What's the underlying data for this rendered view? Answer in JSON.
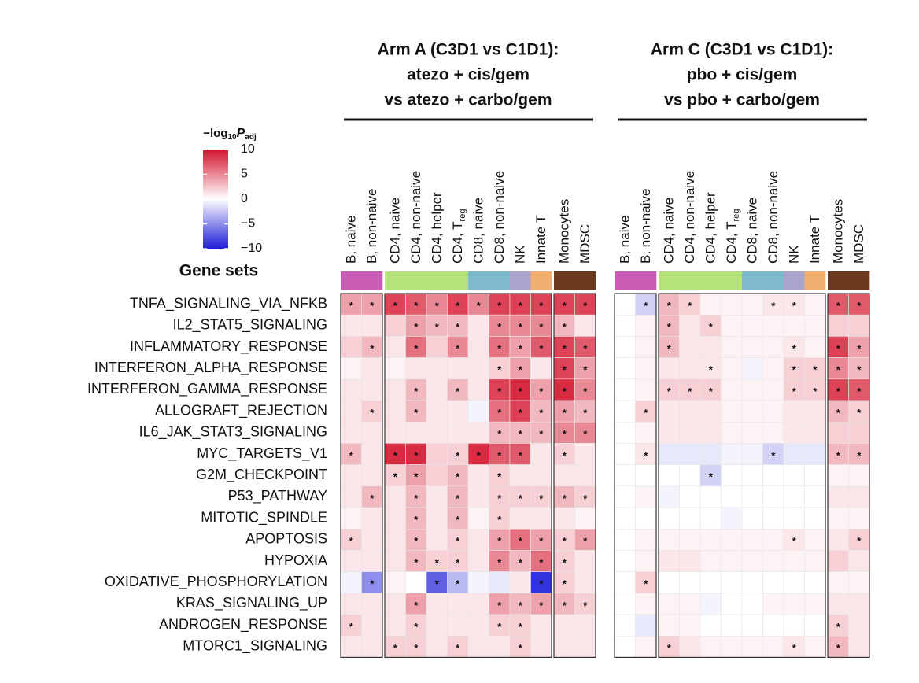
{
  "chart_data": {
    "type": "heatmap",
    "row_axis_label": "Gene sets",
    "rows": [
      "TNFA_SIGNALING_VIA_NFKB",
      "IL2_STAT5_SIGNALING",
      "INFLAMMATORY_RESPONSE",
      "INTERFERON_ALPHA_RESPONSE",
      "INTERFERON_GAMMA_RESPONSE",
      "ALLOGRAFT_REJECTION",
      "IL6_JAK_STAT3_SIGNALING",
      "MYC_TARGETS_V1",
      "G2M_CHECKPOINT",
      "P53_PATHWAY",
      "MITOTIC_SPINDLE",
      "APOPTOSIS",
      "HYPOXIA",
      "OXIDATIVE_PHOSPHORYLATION",
      "KRAS_SIGNALING_UP",
      "ANDROGEN_RESPONSE",
      "MTORC1_SIGNALING"
    ],
    "colorbar": {
      "title": {
        "prefix": "−log",
        "sub1": "10",
        "var": "P",
        "sub2": "adj"
      },
      "clim": [
        -10,
        10
      ],
      "ticks": [
        10,
        5,
        0,
        {
          "value": -5,
          "label": "−5"
        },
        {
          "value": -10,
          "label": "−10"
        }
      ],
      "colors": [
        "#1c1cd8",
        "#ffffff",
        "#d4132c"
      ]
    },
    "panels": [
      {
        "title": [
          "Arm A (C3D1 vs C1D1):",
          "atezo + cis/gem",
          "vs atezo + carbo/gem"
        ],
        "columns": [
          "B, naive",
          "B, non-naive",
          "CD4, naive",
          "CD4, non-naive",
          "CD4, helper",
          {
            "text": "CD4, T",
            "sub": "reg"
          },
          "CD8, naive",
          "CD8, non-naive",
          "NK",
          "Innate T",
          "Monocytes",
          "MDSC"
        ],
        "column_colors": [
          "#c95db6",
          "#c95db6",
          "#b6e27c",
          "#b6e27c",
          "#b6e27c",
          "#b6e27c",
          "#7fb9cd",
          "#7fb9cd",
          "#a9a5cf",
          "#f0b070",
          "#6b3a1e",
          "#6b3a1e"
        ],
        "values": [
          [
            4,
            4,
            8,
            7,
            5,
            8,
            5,
            8,
            8,
            8,
            8,
            8
          ],
          [
            1,
            1,
            2,
            4,
            3,
            3,
            1,
            5,
            5,
            5,
            3,
            1
          ],
          [
            2,
            3,
            1,
            6,
            2,
            5,
            1,
            6,
            4,
            7,
            8,
            7
          ],
          [
            0.5,
            1,
            0.5,
            1,
            1,
            1,
            1,
            2,
            4,
            1,
            8,
            4
          ],
          [
            1,
            1,
            1,
            3,
            1,
            3,
            1,
            8,
            9,
            4,
            9,
            5
          ],
          [
            1,
            2,
            1,
            3,
            1,
            1,
            -0.5,
            6,
            8,
            3,
            4,
            3
          ],
          [
            1,
            1,
            1,
            1,
            1,
            1,
            1,
            3,
            3,
            3,
            5,
            5
          ],
          [
            3,
            1,
            9,
            9,
            2,
            2,
            9,
            7,
            7,
            1,
            2,
            1
          ],
          [
            1,
            1,
            2,
            4,
            2,
            3,
            1,
            2,
            1,
            1,
            1,
            1
          ],
          [
            1,
            3,
            1,
            3,
            1,
            3,
            1,
            2,
            2,
            2,
            3,
            2
          ],
          [
            0.5,
            1,
            1,
            3,
            1,
            3,
            0.5,
            2,
            1,
            1,
            1,
            0.5
          ],
          [
            2,
            1,
            1,
            3,
            1,
            2,
            1,
            4,
            6,
            4,
            2,
            4
          ],
          [
            1,
            1,
            1,
            3,
            2,
            2,
            1,
            5,
            3,
            6,
            2,
            1
          ],
          [
            -0.5,
            -5,
            0.5,
            0,
            -7,
            -3,
            -0.5,
            -1,
            1,
            -9,
            2,
            1
          ],
          [
            1,
            1,
            1,
            4,
            1,
            1,
            1,
            4,
            3,
            4,
            3,
            2
          ],
          [
            2,
            1,
            1,
            2,
            1,
            1,
            1,
            2,
            2,
            1,
            1,
            1
          ],
          [
            1,
            1,
            2,
            2,
            1,
            2,
            1,
            1,
            2,
            1,
            1,
            1
          ]
        ],
        "stars": [
          [
            "*",
            "*",
            "*",
            "*",
            "*",
            "*",
            "*",
            "*",
            "*",
            "*",
            "*",
            "*"
          ],
          [
            null,
            null,
            null,
            "*",
            "*",
            "*",
            null,
            "*",
            "*",
            "*",
            "*",
            null
          ],
          [
            null,
            "*",
            null,
            "*",
            null,
            "*",
            null,
            "*",
            "*",
            "*",
            "*",
            "*"
          ],
          [
            null,
            null,
            null,
            null,
            null,
            null,
            null,
            "*",
            "*",
            null,
            "*",
            "*"
          ],
          [
            null,
            null,
            null,
            "*",
            null,
            "*",
            null,
            "*",
            "*",
            "*",
            "*",
            "*"
          ],
          [
            null,
            "*",
            null,
            "*",
            null,
            null,
            null,
            "*",
            "*",
            "*",
            "*",
            "*"
          ],
          [
            null,
            null,
            null,
            null,
            null,
            null,
            null,
            "*",
            "*",
            "*",
            "*",
            "*"
          ],
          [
            "*",
            null,
            "*",
            "*",
            null,
            "*",
            "*",
            "*",
            "*",
            null,
            "*",
            null
          ],
          [
            null,
            null,
            "*",
            "*",
            null,
            "*",
            null,
            "*",
            null,
            null,
            null,
            null
          ],
          [
            null,
            "*",
            null,
            "*",
            null,
            "*",
            null,
            "*",
            "*",
            "*",
            "*",
            "*"
          ],
          [
            null,
            null,
            null,
            "*",
            null,
            "*",
            null,
            "*",
            null,
            null,
            null,
            null
          ],
          [
            "*",
            null,
            null,
            "*",
            null,
            "*",
            null,
            "*",
            "*",
            "*",
            "*",
            "*"
          ],
          [
            null,
            null,
            null,
            "*",
            "*",
            "*",
            null,
            "*",
            "*",
            "*",
            "*",
            null
          ],
          [
            null,
            "*",
            null,
            null,
            "*",
            "*",
            null,
            null,
            null,
            "*",
            "*",
            null
          ],
          [
            null,
            null,
            null,
            "*",
            null,
            null,
            null,
            "*",
            "*",
            "*",
            "*",
            "*"
          ],
          [
            "*",
            null,
            null,
            "*",
            null,
            null,
            null,
            "*",
            "*",
            null,
            null,
            null
          ],
          [
            null,
            null,
            "*",
            "*",
            null,
            "*",
            null,
            null,
            "*",
            null,
            null,
            null
          ]
        ]
      },
      {
        "title": [
          "Arm C (C3D1 vs C1D1):",
          "pbo + cis/gem",
          "vs pbo + carbo/gem"
        ],
        "columns": [
          "B, naive",
          "B, non-naive",
          "CD4, naive",
          "CD4, non-naive",
          "CD4, helper",
          {
            "text": "CD4, T",
            "sub": "reg"
          },
          "CD8, naive",
          "CD8, non-naive",
          "NK",
          "Innate T",
          "Monocytes",
          "MDSC"
        ],
        "column_colors": [
          "#c95db6",
          "#c95db6",
          "#b6e27c",
          "#b6e27c",
          "#b6e27c",
          "#b6e27c",
          "#7fb9cd",
          "#7fb9cd",
          "#a9a5cf",
          "#f0b070",
          "#6b3a1e",
          "#6b3a1e"
        ],
        "values": [
          [
            0,
            -2,
            3,
            2,
            0.5,
            0.5,
            0.5,
            1,
            1,
            0.5,
            7,
            7
          ],
          [
            0,
            0.5,
            3,
            1,
            2,
            0.5,
            0.5,
            0.5,
            0.5,
            0.5,
            2,
            2
          ],
          [
            0,
            0.5,
            3,
            1,
            1,
            0.5,
            0.5,
            0.5,
            1,
            0.5,
            8,
            4
          ],
          [
            0,
            0.5,
            1,
            1,
            1,
            0.5,
            -0.5,
            0.5,
            2,
            2,
            5,
            3
          ],
          [
            0,
            0.5,
            2,
            2,
            2,
            0.5,
            0.5,
            0.5,
            2,
            2,
            8,
            7
          ],
          [
            0,
            2,
            1,
            1,
            1,
            0.5,
            0.5,
            0.5,
            1,
            1,
            3,
            2
          ],
          [
            0,
            0.5,
            1,
            1,
            1,
            0.5,
            0.5,
            0.5,
            1,
            1,
            2,
            2
          ],
          [
            0,
            1,
            -1,
            -1,
            -1,
            -0.5,
            -0.5,
            -2,
            -1,
            -1,
            3,
            3
          ],
          [
            0,
            0,
            0,
            0,
            -2,
            0,
            0,
            0,
            0,
            0,
            0.5,
            0.5
          ],
          [
            0,
            0.5,
            -0.5,
            0,
            0,
            0,
            0,
            0,
            0,
            0,
            1,
            1
          ],
          [
            0,
            0,
            0,
            0,
            0,
            -0.5,
            0,
            0,
            0,
            0,
            0.5,
            0.5
          ],
          [
            0,
            0.5,
            0.5,
            0.5,
            0.5,
            0.5,
            0.5,
            0.5,
            1,
            0.5,
            1,
            2
          ],
          [
            0,
            0.5,
            1,
            1,
            0.5,
            0.5,
            0.5,
            0.5,
            0.5,
            0.5,
            2,
            1
          ],
          [
            0,
            2,
            0,
            0,
            0,
            0,
            0,
            0,
            0,
            0,
            0.5,
            0.5
          ],
          [
            0,
            0.5,
            0.5,
            0.5,
            -0.5,
            0,
            0,
            0.5,
            0.5,
            0.5,
            1,
            1
          ],
          [
            0,
            -1,
            0.5,
            0.5,
            0,
            0,
            0,
            0,
            0,
            0,
            2,
            1
          ],
          [
            0,
            0.5,
            2,
            1,
            0.5,
            0.5,
            0.5,
            0.5,
            1,
            0.5,
            3,
            1
          ]
        ],
        "stars": [
          [
            null,
            "*",
            "*",
            "*",
            null,
            null,
            null,
            "*",
            "*",
            null,
            "*",
            "*"
          ],
          [
            null,
            null,
            "*",
            null,
            "*",
            null,
            null,
            null,
            null,
            null,
            null,
            null
          ],
          [
            null,
            null,
            "*",
            null,
            null,
            null,
            null,
            null,
            "*",
            null,
            "*",
            "*"
          ],
          [
            null,
            null,
            null,
            null,
            "*",
            null,
            null,
            null,
            "*",
            "*",
            "*",
            "*"
          ],
          [
            null,
            null,
            "*",
            "*",
            "*",
            null,
            null,
            null,
            "*",
            "*",
            "*",
            "*"
          ],
          [
            null,
            "*",
            null,
            null,
            null,
            null,
            null,
            null,
            null,
            null,
            "*",
            "*"
          ],
          [
            null,
            null,
            null,
            null,
            null,
            null,
            null,
            null,
            null,
            null,
            null,
            null
          ],
          [
            null,
            "*",
            null,
            null,
            null,
            null,
            null,
            "*",
            null,
            null,
            "*",
            "*"
          ],
          [
            null,
            null,
            null,
            null,
            "*",
            null,
            null,
            null,
            null,
            null,
            null,
            null
          ],
          [
            null,
            null,
            null,
            null,
            null,
            null,
            null,
            null,
            null,
            null,
            null,
            null
          ],
          [
            null,
            null,
            null,
            null,
            null,
            null,
            null,
            null,
            null,
            null,
            null,
            null
          ],
          [
            null,
            null,
            null,
            null,
            null,
            null,
            null,
            null,
            "*",
            null,
            null,
            "*"
          ],
          [
            null,
            null,
            null,
            null,
            null,
            null,
            null,
            null,
            null,
            null,
            null,
            null
          ],
          [
            null,
            "*",
            null,
            null,
            null,
            null,
            null,
            null,
            null,
            null,
            null,
            null
          ],
          [
            null,
            null,
            null,
            null,
            null,
            null,
            null,
            null,
            null,
            null,
            null,
            null
          ],
          [
            null,
            null,
            null,
            null,
            null,
            null,
            null,
            null,
            null,
            null,
            "*",
            null
          ],
          [
            null,
            null,
            "*",
            null,
            null,
            null,
            null,
            null,
            "*",
            null,
            "*",
            null
          ]
        ]
      }
    ]
  }
}
